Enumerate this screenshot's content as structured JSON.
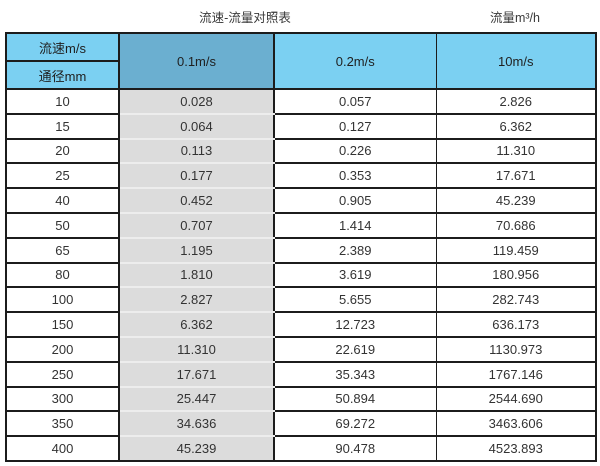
{
  "page": {
    "caption_left": "流速-流量对照表",
    "caption_right": "流量m³/h"
  },
  "colors": {
    "header_blue": "#7bd0f2",
    "highlight_blue": "#6bafd0",
    "grey_column": "#dcdcdc",
    "border": "#1c1c1c"
  },
  "chart_data": {
    "type": "table",
    "title": "流速-流量对照表",
    "unit_label": "流量m³/h",
    "corner": {
      "top": "流速m/s",
      "bottom": "通径mm"
    },
    "columns": [
      "0.1m/s",
      "0.2m/s",
      "10m/s"
    ],
    "highlighted_column": "0.1m/s",
    "rows": [
      [
        "10",
        "0.028",
        "0.057",
        "2.826"
      ],
      [
        "15",
        "0.064",
        "0.127",
        "6.362"
      ],
      [
        "20",
        "0.113",
        "0.226",
        "11.310"
      ],
      [
        "25",
        "0.177",
        "0.353",
        "17.671"
      ],
      [
        "40",
        "0.452",
        "0.905",
        "45.239"
      ],
      [
        "50",
        "0.707",
        "1.414",
        "70.686"
      ],
      [
        "65",
        "1.195",
        "2.389",
        "119.459"
      ],
      [
        "80",
        "1.810",
        "3.619",
        "180.956"
      ],
      [
        "100",
        "2.827",
        "5.655",
        "282.743"
      ],
      [
        "150",
        "6.362",
        "12.723",
        "636.173"
      ],
      [
        "200",
        "11.310",
        "22.619",
        "1130.973"
      ],
      [
        "250",
        "17.671",
        "35.343",
        "1767.146"
      ],
      [
        "300",
        "25.447",
        "50.894",
        "2544.690"
      ],
      [
        "350",
        "34.636",
        "69.272",
        "3463.606"
      ],
      [
        "400",
        "45.239",
        "90.478",
        "4523.893"
      ]
    ]
  }
}
